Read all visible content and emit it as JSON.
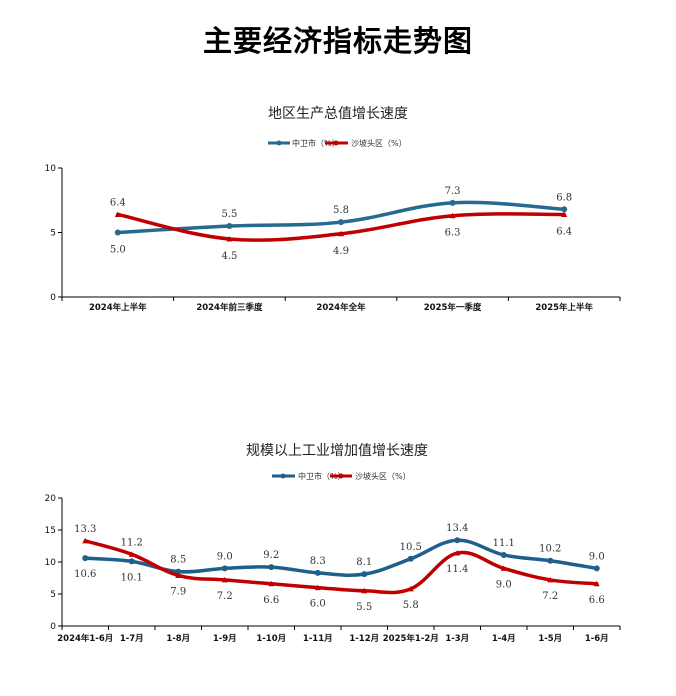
{
  "page": {
    "title": "主要经济指标走势图"
  },
  "chart_data": [
    {
      "type": "line",
      "title": "地区生产总值增长速度",
      "categories": [
        "2024年上半年",
        "2024年前三季度",
        "2024年全年",
        "2025年一季度",
        "2025年上半年"
      ],
      "ylim": [
        0,
        10
      ],
      "yticks": [
        "0",
        "5",
        "10"
      ],
      "legend_position": "top-center",
      "series": [
        {
          "name": "中卫市（%）",
          "color": "#27698f",
          "values": [
            5.0,
            5.5,
            5.8,
            7.3,
            6.8
          ],
          "labels": [
            "5.0",
            "5.5",
            "5.8",
            "7.3",
            "6.8"
          ]
        },
        {
          "name": "沙坡头区（%）",
          "color": "#c00000",
          "values": [
            6.4,
            4.5,
            4.9,
            6.3,
            6.4
          ],
          "labels": [
            "6.4",
            "4.5",
            "4.9",
            "6.3",
            "6.4"
          ]
        }
      ]
    },
    {
      "type": "line",
      "title": "规模以上工业增加值增长速度",
      "categories": [
        "2024年1-6月",
        "1-7月",
        "1-8月",
        "1-9月",
        "1-10月",
        "1-11月",
        "1-12月",
        "2025年1-2月",
        "1-3月",
        "1-4月",
        "1-5月",
        "1-6月"
      ],
      "ylim": [
        0,
        20
      ],
      "yticks": [
        "0",
        "5",
        "10",
        "15",
        "20"
      ],
      "legend_position": "top-center",
      "series": [
        {
          "name": "中卫市（%）",
          "color": "#1f5f8b",
          "values": [
            10.6,
            10.1,
            8.5,
            9.0,
            9.2,
            8.3,
            8.1,
            10.5,
            13.4,
            11.1,
            10.2,
            9.0
          ],
          "labels": [
            "10.6",
            "10.1",
            "8.5",
            "9.0",
            "9.2",
            "8.3",
            "8.1",
            "10.5",
            "13.4",
            "11.1",
            "10.2",
            "9.0"
          ]
        },
        {
          "name": "沙坡头区（%）",
          "color": "#c00000",
          "values": [
            13.3,
            11.2,
            7.9,
            7.2,
            6.6,
            6.0,
            5.5,
            5.8,
            11.4,
            9.0,
            7.2,
            6.6
          ],
          "labels": [
            "13.3",
            "11.2",
            "7.9",
            "7.2",
            "6.6",
            "6.0",
            "5.5",
            "5.8",
            "11.4",
            "9.0",
            "7.2",
            "6.6"
          ]
        }
      ]
    }
  ]
}
